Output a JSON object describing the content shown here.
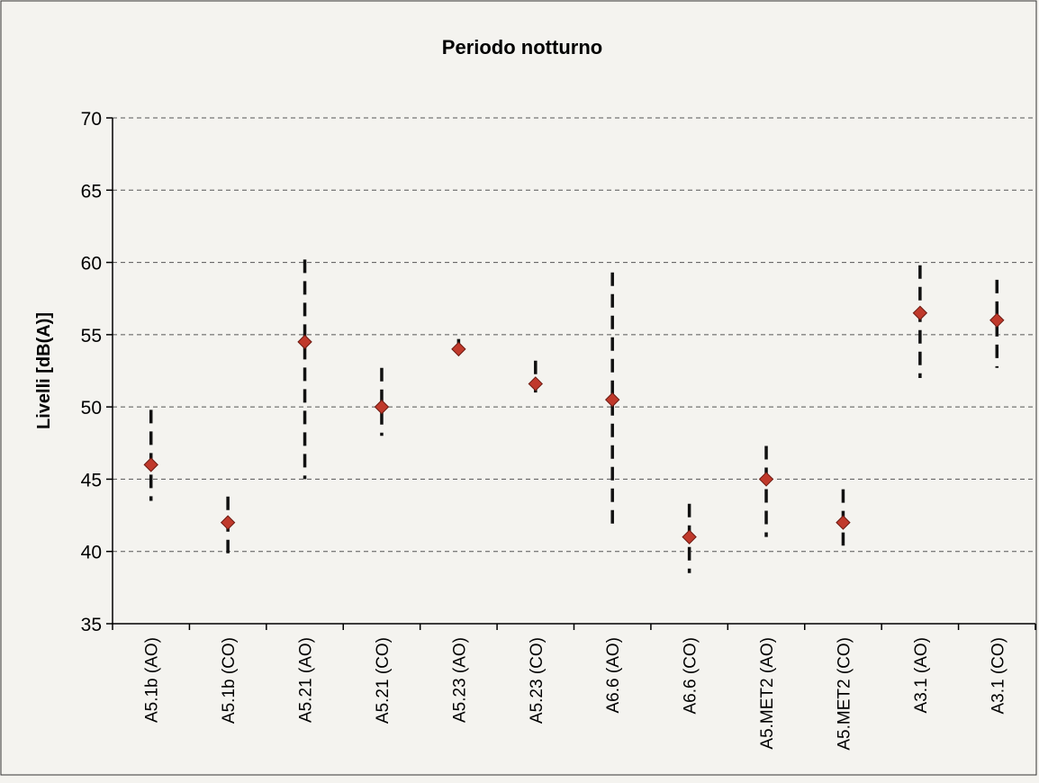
{
  "chart_data": {
    "type": "scatter",
    "title": "Periodo notturno",
    "xlabel": "",
    "ylabel": "Livelli [dB(A)]",
    "ylim": [
      35,
      70
    ],
    "yticks": [
      35,
      40,
      45,
      50,
      55,
      60,
      65,
      70
    ],
    "grid": true,
    "marker_color": "#c0392b",
    "categories": [
      "A5.1b (AO)",
      "A5.1b (CO)",
      "A5.21 (AO)",
      "A5.21 (CO)",
      "A5.23 (AO)",
      "A5.23 (CO)",
      "A6.6 (AO)",
      "A6.6 (CO)",
      "A5.MET2 (AO)",
      "A5.MET2 (CO)",
      "A3.1 (AO)",
      "A3.1 (CO)"
    ],
    "values": [
      46,
      42,
      54.5,
      50,
      54,
      51.6,
      50.5,
      41,
      45,
      42,
      56.5,
      56
    ],
    "ranges": [
      [
        43.5,
        49.8
      ],
      [
        39.8,
        43.8
      ],
      [
        45,
        60.2
      ],
      [
        48,
        52.7
      ],
      [
        53.5,
        54.7
      ],
      [
        51,
        53.2
      ],
      [
        41.5,
        59.3
      ],
      [
        38.5,
        43.3
      ],
      [
        41,
        47.3
      ],
      [
        40.4,
        44.3
      ],
      [
        52,
        59.8
      ],
      [
        52.7,
        58.8
      ]
    ]
  }
}
